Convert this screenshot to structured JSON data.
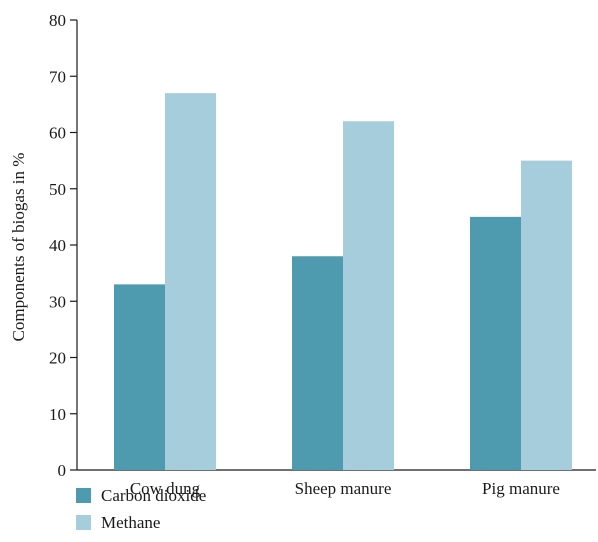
{
  "chart_data": {
    "type": "bar",
    "title": "",
    "xlabel": "",
    "ylabel": "Components of biogas in %",
    "categories": [
      "Cow dung",
      "Sheep manure",
      "Pig manure"
    ],
    "series": [
      {
        "name": "Carbon dioxide",
        "values": [
          33,
          38,
          45
        ],
        "color": "#4e9bb0"
      },
      {
        "name": "Methane",
        "values": [
          67,
          62,
          55
        ],
        "color": "#a6cddc"
      }
    ],
    "ylim": [
      0,
      80
    ],
    "yticks": [
      0,
      10,
      20,
      30,
      40,
      50,
      60,
      70,
      80
    ],
    "grid": false,
    "legend_position": "bottom-left"
  }
}
